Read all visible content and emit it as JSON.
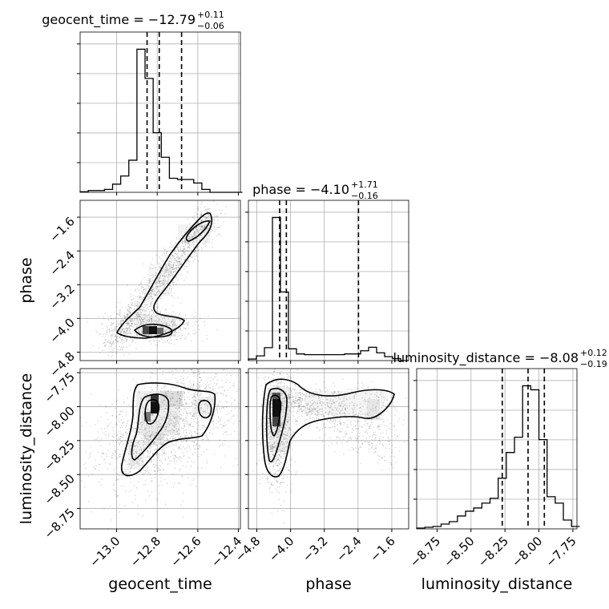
{
  "chart_data": {
    "type": "corner",
    "parameters": [
      "geocent_time",
      "phase",
      "luminosity_distance"
    ],
    "grid": true,
    "titles": [
      {
        "param": "geocent_time",
        "label": "geocent_time = −12.79",
        "plus": "+0.11",
        "minus": "−0.06"
      },
      {
        "param": "phase",
        "label": "phase = −4.10",
        "plus": "+1.71",
        "minus": "−0.16"
      },
      {
        "param": "luminosity_distance",
        "label": "luminosity_distance = −8.08",
        "plus": "+0.12",
        "minus": "−0.19"
      }
    ],
    "axes": {
      "geocent_time": {
        "range": [
          -13.18,
          -12.39
        ],
        "ticks": [
          -13.0,
          -12.8,
          -12.6,
          -12.4
        ],
        "tick_labels": [
          "−13.0",
          "−12.8",
          "−12.6",
          "−12.4"
        ]
      },
      "phase": {
        "range": [
          -5.0,
          -1.2
        ],
        "ticks": [
          -4.8,
          -4.0,
          -3.2,
          -2.4,
          -1.6
        ],
        "tick_labels": [
          "−4.8",
          "−4.0",
          "−3.2",
          "−2.4",
          "−1.6"
        ]
      },
      "luminosity_distance": {
        "range": [
          -8.9,
          -7.72
        ],
        "ticks": [
          -8.75,
          -8.5,
          -8.25,
          -8.0,
          -7.75
        ],
        "tick_labels": [
          "−8.75",
          "−8.50",
          "−8.25",
          "−8.00",
          "−7.75"
        ]
      }
    },
    "histograms": [
      {
        "param": "geocent_time",
        "bin_edges": [
          -13.18,
          -13.14,
          -13.1,
          -13.06,
          -13.02,
          -12.98,
          -12.94,
          -12.9,
          -12.86,
          -12.82,
          -12.78,
          -12.74,
          -12.7,
          -12.66,
          -12.62,
          -12.58,
          -12.54,
          -12.5,
          -12.46,
          -12.42,
          -12.38
        ],
        "counts": [
          1,
          3,
          3,
          5,
          14,
          28,
          55,
          245,
          195,
          102,
          60,
          24,
          22,
          22,
          16,
          5,
          0,
          0,
          0,
          0
        ],
        "quantiles": [
          -12.85,
          -12.79,
          -12.68
        ]
      },
      {
        "param": "phase",
        "bin_edges": [
          -5.0,
          -4.81,
          -4.62,
          -4.43,
          -4.24,
          -4.05,
          -3.86,
          -3.67,
          -3.48,
          -3.29,
          -3.1,
          -2.91,
          -2.72,
          -2.53,
          -2.34,
          -2.15,
          -1.96,
          -1.77,
          -1.58,
          -1.39,
          -1.2
        ],
        "counts": [
          4,
          12,
          33,
          365,
          175,
          30,
          17,
          15,
          15,
          15,
          15,
          15,
          17,
          17,
          25,
          34,
          20,
          10,
          5,
          0
        ],
        "quantiles": [
          -4.26,
          -4.1,
          -2.39
        ]
      },
      {
        "param": "luminosity_distance",
        "bin_edges": [
          -8.9,
          -8.84,
          -8.78,
          -8.72,
          -8.66,
          -8.6,
          -8.54,
          -8.48,
          -8.42,
          -8.36,
          -8.3,
          -8.24,
          -8.18,
          -8.12,
          -8.06,
          -8.0,
          -7.94,
          -7.88,
          -7.82,
          -7.76,
          -7.7
        ],
        "counts": [
          1,
          2,
          3,
          6,
          9,
          16,
          22,
          26,
          32,
          38,
          63,
          95,
          114,
          178,
          173,
          111,
          40,
          32,
          11,
          3
        ],
        "quantiles": [
          -8.27,
          -8.08,
          -7.96
        ]
      }
    ]
  }
}
